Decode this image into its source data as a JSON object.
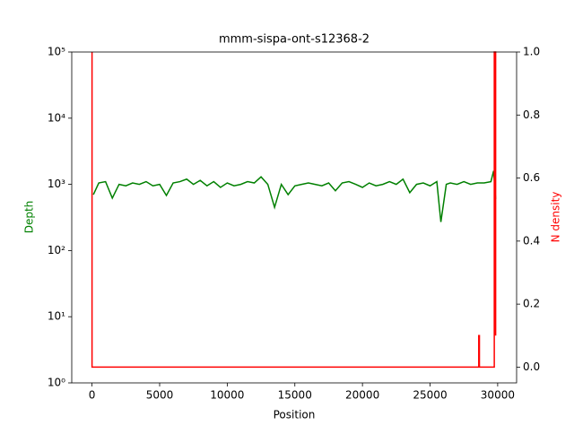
{
  "chart_data": {
    "type": "line",
    "title": "mmm-sispa-ont-s12368-2",
    "xlabel": "Position",
    "ylabel": "Depth",
    "y2label": "N density",
    "ylabel_color": "#008000",
    "y2label_color": "#ff0000",
    "xlim": [
      -1500,
      31400
    ],
    "xticks": [
      0,
      5000,
      10000,
      15000,
      20000,
      25000,
      30000
    ],
    "ylim": [
      1,
      100000
    ],
    "yscale": "log",
    "yticks": [
      {
        "value": 1,
        "label": "10⁰"
      },
      {
        "value": 10,
        "label": "10¹"
      },
      {
        "value": 100,
        "label": "10²"
      },
      {
        "value": 1000,
        "label": "10³"
      },
      {
        "value": 10000,
        "label": "10⁴"
      },
      {
        "value": 100000,
        "label": "10⁵"
      }
    ],
    "y2lim": [
      -0.05,
      1.0
    ],
    "y2ticks": [
      {
        "value": 0,
        "label": "0.0"
      },
      0.2,
      0.4,
      0.6,
      0.8,
      {
        "value": 1,
        "label": "1.0"
      }
    ],
    "series": [
      {
        "color": "#008000",
        "x": [
          100,
          500,
          1000,
          1500,
          2000,
          2500,
          3000,
          3500,
          4000,
          4500,
          5000,
          5500,
          6000,
          6500,
          7000,
          7500,
          8000,
          8500,
          9000,
          9500,
          10000,
          10500,
          11000,
          11500,
          12000,
          12500,
          13000,
          13500,
          14000,
          14500,
          15000,
          15500,
          16000,
          16500,
          17000,
          17500,
          18000,
          18500,
          19000,
          19500,
          20000,
          20500,
          21000,
          21500,
          22000,
          22500,
          23000,
          23500,
          24000,
          24500,
          25000,
          25500,
          25800,
          26200,
          26500,
          27000,
          27500,
          28000,
          28500,
          29000,
          29500,
          29700,
          29850
        ],
        "values": [
          700,
          1050,
          1100,
          620,
          1000,
          950,
          1050,
          1000,
          1100,
          950,
          1000,
          680,
          1050,
          1100,
          1200,
          1000,
          1150,
          950,
          1100,
          900,
          1050,
          950,
          1000,
          1100,
          1050,
          1300,
          1000,
          450,
          1000,
          700,
          950,
          1000,
          1050,
          1000,
          950,
          1050,
          800,
          1050,
          1100,
          1000,
          900,
          1050,
          950,
          1000,
          1100,
          1000,
          1200,
          750,
          1000,
          1050,
          950,
          1100,
          270,
          1000,
          1050,
          1000,
          1100,
          1000,
          1050,
          1050,
          1100,
          1600,
          600
        ]
      },
      {
        "color": "#ff0000",
        "axis": "y2",
        "x": [
          0,
          0,
          28600,
          28600,
          28650,
          28650,
          29750,
          29750,
          29850,
          29850
        ],
        "values": [
          1.0,
          0,
          0,
          0.1,
          0.1,
          0,
          0,
          1.0,
          1.0,
          0.1
        ]
      }
    ]
  }
}
